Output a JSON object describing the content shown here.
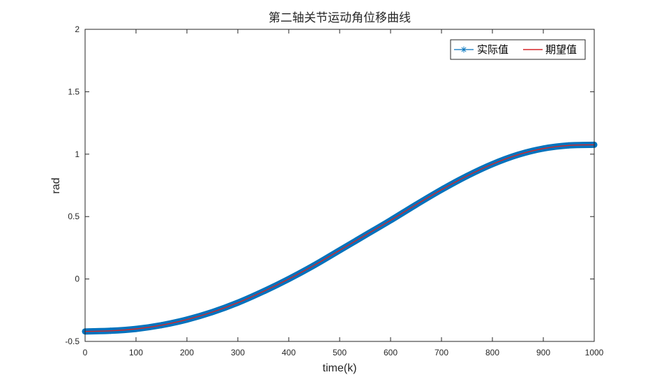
{
  "chart_data": {
    "type": "line",
    "title": "第二轴关节运动角位移曲线",
    "xlabel": "time(k)",
    "ylabel": "rad",
    "xlim": [
      0,
      1000
    ],
    "ylim": [
      -0.5,
      2
    ],
    "xticks": [
      "0",
      "100",
      "200",
      "300",
      "400",
      "500",
      "600",
      "700",
      "800",
      "900",
      "1000"
    ],
    "yticks": [
      "-0.5",
      "0",
      "0.5",
      "1",
      "1.5",
      "2"
    ],
    "grid": false,
    "legend_position": "top-right",
    "x": [
      0,
      50,
      100,
      150,
      200,
      250,
      300,
      350,
      400,
      450,
      500,
      550,
      600,
      650,
      700,
      750,
      800,
      850,
      900,
      950,
      1000
    ],
    "series": [
      {
        "name": "实际值",
        "color": "#0072bd",
        "marker": "asterisk",
        "values": [
          -0.42,
          -0.415,
          -0.4,
          -0.37,
          -0.325,
          -0.265,
          -0.19,
          -0.1,
          0.0,
          0.11,
          0.23,
          0.35,
          0.47,
          0.595,
          0.715,
          0.825,
          0.92,
          0.995,
          1.045,
          1.07,
          1.075
        ]
      },
      {
        "name": "期望值",
        "color": "#d62728",
        "marker": "none",
        "values": [
          -0.42,
          -0.415,
          -0.4,
          -0.37,
          -0.325,
          -0.265,
          -0.19,
          -0.1,
          0.0,
          0.11,
          0.23,
          0.35,
          0.47,
          0.595,
          0.715,
          0.825,
          0.92,
          0.995,
          1.045,
          1.07,
          1.075
        ]
      }
    ]
  }
}
